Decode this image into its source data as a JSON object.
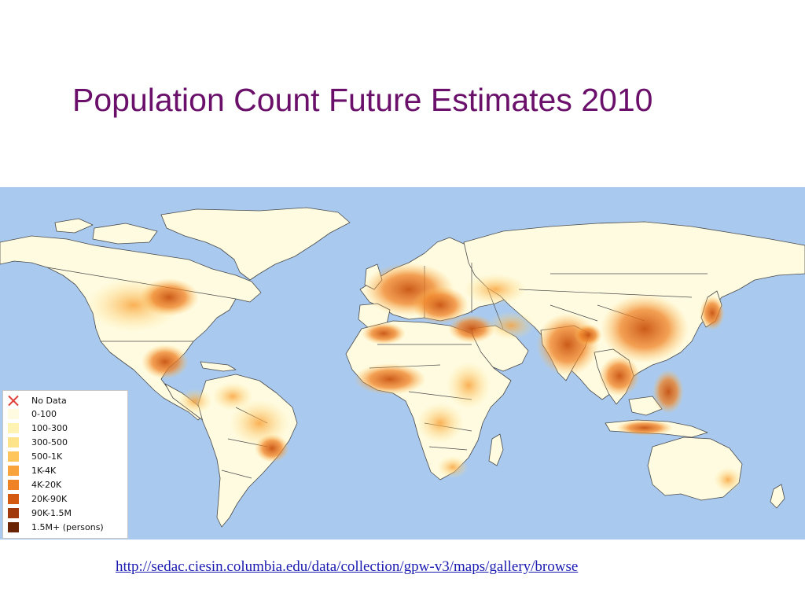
{
  "slide": {
    "title": "Population Count Future Estimates 2010",
    "source_link": "http://sedac.ciesin.columbia.edu/data/collection/gpw-v3/maps/gallery/browse"
  },
  "map": {
    "ocean_color": "#a9c9ef",
    "land_color": "#fffbe0",
    "border_color": "#4a4a4a"
  },
  "legend": {
    "items": [
      {
        "label": "No Data",
        "color": "#ffffff",
        "icon": "x-mark-icon"
      },
      {
        "label": "0-100",
        "color": "#fffbe0"
      },
      {
        "label": "100-300",
        "color": "#fff3b3"
      },
      {
        "label": "300-500",
        "color": "#fde48a"
      },
      {
        "label": "500-1K",
        "color": "#fdc55c"
      },
      {
        "label": "1K-4K",
        "color": "#f9a33c"
      },
      {
        "label": "4K-20K",
        "color": "#ef8225"
      },
      {
        "label": "20K-90K",
        "color": "#d45a12"
      },
      {
        "label": "90K-1.5M",
        "color": "#a13a0c"
      },
      {
        "label": "1.5M+ (persons)",
        "color": "#6b2306"
      }
    ]
  }
}
